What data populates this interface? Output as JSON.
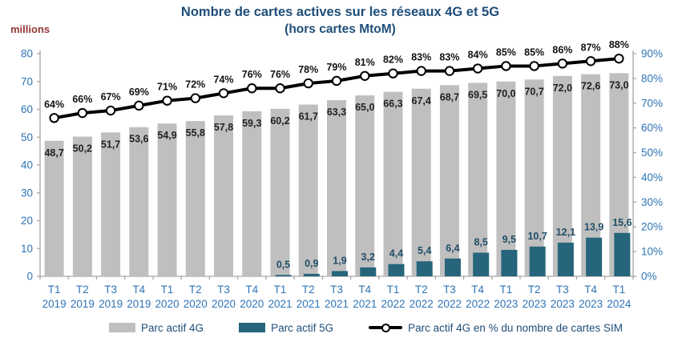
{
  "header": {
    "title": "Nombre de cartes actives sur les réseaux 4G et 5G",
    "subtitle": "(hors cartes MtoM)"
  },
  "palette": {
    "title_color": "#1F4E79",
    "axis_label_color": "#2E74B5",
    "unit_color": "#953735",
    "legend_text_color": "#1F4E79",
    "axis_line_color": "#A6A6A6",
    "label_4g_color": "#212121",
    "label_5g_color": "#1F4E66",
    "label_pct_color": "#111111"
  },
  "chart_data": {
    "type": "bar+line combo",
    "categories": [
      "T1 2019",
      "T2 2019",
      "T3 2019",
      "T4 2019",
      "T1 2020",
      "T2 2020",
      "T3 2020",
      "T4 2020",
      "T1 2021",
      "T2 2021",
      "T3 2021",
      "T4 2021",
      "T1 2022",
      "T2 2022",
      "T3 2022",
      "T4 2022",
      "T1 2023",
      "T2 2023",
      "T3 2023",
      "T4 2023",
      "T1 2024"
    ],
    "series": [
      {
        "name": "Parc actif 4G",
        "type": "bar",
        "axis": "left",
        "color": "#BFBFBF",
        "values": [
          48.7,
          50.2,
          51.7,
          53.6,
          54.9,
          55.8,
          57.8,
          59.3,
          60.2,
          61.7,
          63.3,
          65.0,
          66.3,
          67.4,
          68.7,
          69.5,
          70.0,
          70.7,
          72.0,
          72.6,
          73.0
        ],
        "labels": [
          "48,7",
          "50,2",
          "51,7",
          "53,6",
          "54,9",
          "55,8",
          "57,8",
          "59,3",
          "60,2",
          "61,7",
          "63,3",
          "65,0",
          "66,3",
          "67,4",
          "68,7",
          "69,5",
          "70,0",
          "70,7",
          "72,0",
          "72,6",
          "73,0"
        ]
      },
      {
        "name": "Parc actif 5G",
        "type": "bar",
        "axis": "left",
        "color": "#26657B",
        "values": [
          null,
          null,
          null,
          null,
          null,
          null,
          null,
          null,
          0.5,
          0.9,
          1.9,
          3.2,
          4.4,
          5.4,
          6.4,
          8.5,
          9.5,
          10.7,
          12.1,
          13.9,
          15.6
        ],
        "labels": [
          null,
          null,
          null,
          null,
          null,
          null,
          null,
          null,
          "0,5",
          "0,9",
          "1,9",
          "3,2",
          "4,4",
          "5,4",
          "6,4",
          "8,5",
          "9,5",
          "10,7",
          "12,1",
          "13,9",
          "15,6"
        ]
      },
      {
        "name": "Parc actif 4G en % du nombre de cartes SIM",
        "type": "line",
        "axis": "right",
        "color": "#000000",
        "values": [
          64,
          66,
          67,
          69,
          71,
          72,
          74,
          76,
          76,
          78,
          79,
          81,
          82,
          83,
          83,
          84,
          85,
          85,
          86,
          87,
          88
        ],
        "labels": [
          "64%",
          "66%",
          "67%",
          "69%",
          "71%",
          "72%",
          "74%",
          "76%",
          "76%",
          "78%",
          "79%",
          "81%",
          "82%",
          "83%",
          "83%",
          "84%",
          "85%",
          "85%",
          "86%",
          "87%",
          "88%"
        ]
      }
    ],
    "left_axis": {
      "unit": "millions",
      "min": 0,
      "max": 80,
      "step": 10,
      "ticks": [
        "0",
        "10",
        "20",
        "30",
        "40",
        "50",
        "60",
        "70",
        "80"
      ]
    },
    "right_axis": {
      "min": 0,
      "max": 90,
      "step": 10,
      "ticks": [
        "0%",
        "10%",
        "20%",
        "30%",
        "40%",
        "50%",
        "60%",
        "70%",
        "80%",
        "90%"
      ]
    },
    "grid": false,
    "legend_position": "bottom"
  },
  "legend": {
    "items": [
      {
        "label": "Parc actif 4G"
      },
      {
        "label": "Parc actif 5G"
      },
      {
        "label": "Parc actif 4G en % du nombre de cartes SIM"
      }
    ]
  }
}
